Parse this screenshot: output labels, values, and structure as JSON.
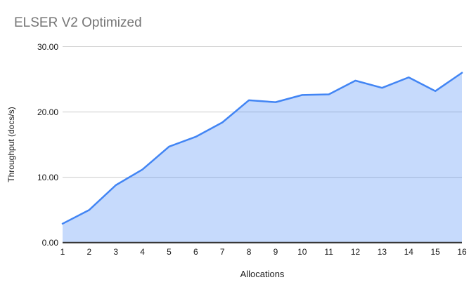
{
  "chart_data": {
    "type": "area",
    "title": "ELSER V2 Optimized",
    "xlabel": "Allocations",
    "ylabel": "Throughput (docs/s)",
    "x": [
      1,
      2,
      3,
      4,
      5,
      6,
      7,
      8,
      9,
      10,
      11,
      12,
      13,
      14,
      15,
      16
    ],
    "values": [
      2.9,
      5.0,
      8.8,
      11.2,
      14.7,
      16.2,
      18.4,
      21.8,
      21.5,
      22.6,
      22.7,
      24.8,
      23.7,
      25.3,
      23.2,
      26.0
    ],
    "ylim": [
      0,
      30
    ],
    "y_ticks": [
      0,
      10,
      20,
      30
    ],
    "y_tick_labels": [
      "0.00",
      "10.00",
      "20.00",
      "30.00"
    ],
    "grid": true,
    "legend": "none"
  },
  "colors": {
    "title": "#757575",
    "line": "#4285f4",
    "fill": "rgba(66,133,244,0.30)",
    "gridline": "#cccccc",
    "axis_line": "#333333",
    "tick_label": "#1a1a1a"
  }
}
